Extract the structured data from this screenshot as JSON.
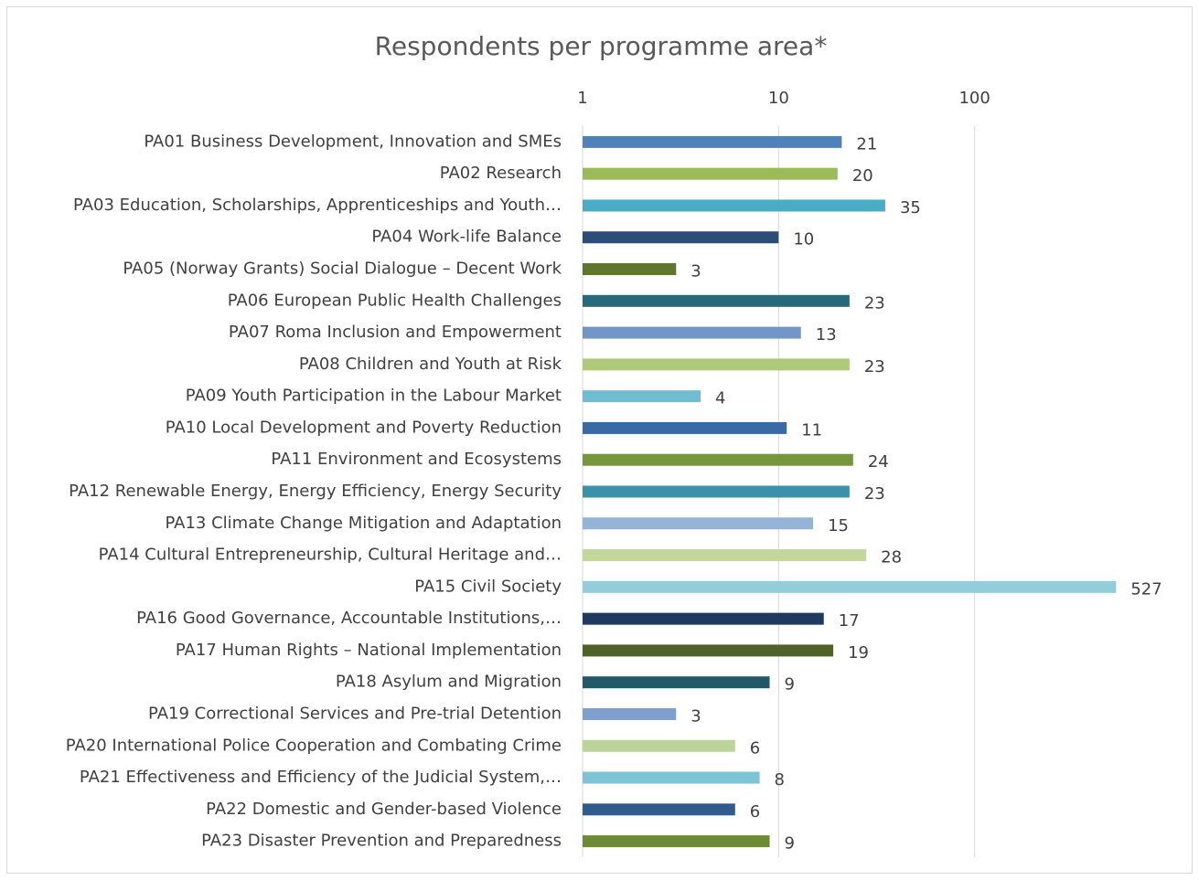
{
  "chart_data": {
    "type": "bar",
    "orientation": "horizontal",
    "title": "Respondents per programme area*",
    "categories": [
      "PA01 Business Development, Innovation and SMEs",
      "PA02 Research",
      "PA03 Education, Scholarships, Apprenticeships and Youth…",
      "PA04 Work-life Balance",
      "PA05 (Norway Grants) Social Dialogue – Decent Work",
      "PA06 European Public Health Challenges",
      "PA07 Roma Inclusion and Empowerment",
      "PA08 Children and Youth at Risk",
      "PA09 Youth Participation in the Labour Market",
      "PA10 Local Development and Poverty Reduction",
      "PA11 Environment and Ecosystems",
      "PA12 Renewable Energy, Energy Efficiency, Energy Security",
      "PA13 Climate Change Mitigation and Adaptation",
      "PA14 Cultural Entrepreneurship, Cultural Heritage and…",
      "PA15 Civil Society",
      "PA16 Good Governance, Accountable Institutions,…",
      "PA17 Human Rights – National Implementation",
      "PA18 Asylum and Migration",
      "PA19 Correctional Services and Pre-trial Detention",
      "PA20 International Police Cooperation and Combating Crime",
      "PA21 Effectiveness and Efficiency of the Judicial System,…",
      "PA22 Domestic and Gender-based Violence",
      "PA23 Disaster Prevention and Preparedness"
    ],
    "values": [
      21,
      20,
      35,
      10,
      3,
      23,
      13,
      23,
      4,
      11,
      24,
      23,
      15,
      28,
      527,
      17,
      19,
      9,
      3,
      6,
      8,
      6,
      9
    ],
    "colors": [
      "#4f81bd",
      "#9bbb59",
      "#4bacc6",
      "#2c4d75",
      "#5f7530",
      "#276a7c",
      "#7396c8",
      "#afc97a",
      "#6fbdd1",
      "#3a6aa4",
      "#77973d",
      "#3a91a9",
      "#95b3d7",
      "#c3d69b",
      "#92cddc",
      "#1f3a5f",
      "#4f6228",
      "#215968",
      "#7f9fcf",
      "#bcd49a",
      "#7fc4d6",
      "#305b8c",
      "#6d8b35"
    ],
    "xlim": [
      1,
      1000
    ],
    "xticks": [
      1,
      10,
      100
    ],
    "log_scale": true,
    "grid": true
  }
}
